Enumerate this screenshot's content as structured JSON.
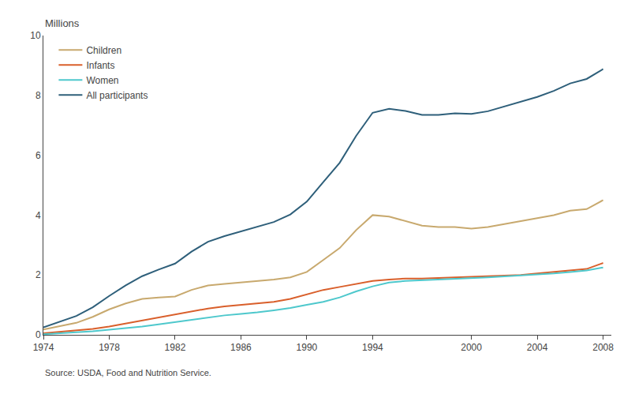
{
  "chart_data": {
    "type": "line",
    "ylabel": "Millions",
    "annotations": [
      "Source: USDA, Food and Nutrition Service."
    ],
    "x": [
      1974,
      1975,
      1976,
      1977,
      1978,
      1979,
      1980,
      1981,
      1982,
      1983,
      1984,
      1985,
      1986,
      1987,
      1988,
      1989,
      1990,
      1991,
      1992,
      1993,
      1994,
      1995,
      1996,
      1997,
      1998,
      1999,
      2000,
      2001,
      2002,
      2003,
      2004,
      2005,
      2006,
      2007,
      2008
    ],
    "series": [
      {
        "name": "Children",
        "color": "#c8a96e",
        "values": [
          0.18,
          0.28,
          0.4,
          0.6,
          0.85,
          1.05,
          1.2,
          1.25,
          1.28,
          1.5,
          1.65,
          1.7,
          1.75,
          1.8,
          1.85,
          1.92,
          2.1,
          2.5,
          2.9,
          3.5,
          4.0,
          3.95,
          3.8,
          3.65,
          3.6,
          3.6,
          3.55,
          3.6,
          3.7,
          3.8,
          3.9,
          4.0,
          4.15,
          4.2,
          4.5
        ]
      },
      {
        "name": "Infants",
        "color": "#d95f2b",
        "values": [
          0.05,
          0.1,
          0.15,
          0.2,
          0.28,
          0.38,
          0.48,
          0.58,
          0.68,
          0.78,
          0.88,
          0.95,
          1.0,
          1.05,
          1.1,
          1.2,
          1.35,
          1.5,
          1.6,
          1.7,
          1.8,
          1.85,
          1.88,
          1.88,
          1.9,
          1.92,
          1.93,
          1.95,
          1.98,
          2.0,
          2.05,
          2.1,
          2.15,
          2.2,
          2.4
        ]
      },
      {
        "name": "Women",
        "color": "#4ec8cc",
        "values": [
          0.02,
          0.05,
          0.08,
          0.12,
          0.17,
          0.22,
          0.28,
          0.35,
          0.42,
          0.5,
          0.58,
          0.65,
          0.7,
          0.75,
          0.82,
          0.9,
          1.0,
          1.1,
          1.25,
          1.45,
          1.62,
          1.75,
          1.8,
          1.82,
          1.85,
          1.88,
          1.9,
          1.92,
          1.95,
          1.98,
          2.0,
          2.05,
          2.1,
          2.15,
          2.25
        ]
      },
      {
        "name": "All participants",
        "color": "#2e5f7a",
        "values": [
          0.25,
          0.43,
          0.63,
          0.92,
          1.3,
          1.65,
          1.96,
          2.18,
          2.38,
          2.78,
          3.11,
          3.3,
          3.45,
          3.6,
          3.77,
          4.02,
          4.45,
          5.1,
          5.75,
          6.65,
          7.42,
          7.55,
          7.48,
          7.35,
          7.35,
          7.4,
          7.38,
          7.47,
          7.63,
          7.78,
          7.95,
          8.15,
          8.4,
          8.55,
          8.88
        ]
      }
    ],
    "xlim": [
      1974,
      2008.5
    ],
    "xticks": [
      1974,
      1978,
      1982,
      1986,
      1990,
      1994,
      2000,
      2004,
      2008
    ],
    "ylim": [
      0,
      10
    ],
    "yticks": [
      0,
      2,
      4,
      6,
      8,
      10
    ],
    "grid": false,
    "legend": "upper left"
  }
}
